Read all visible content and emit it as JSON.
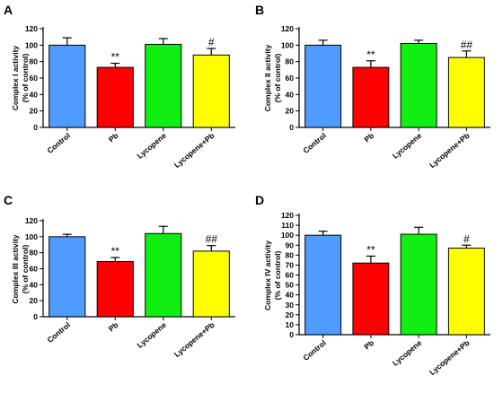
{
  "chart_data": [
    {
      "type": "bar",
      "panel": "A",
      "categories": [
        "Control",
        "Pb",
        "Lycopene",
        "Lycopene+Pb"
      ],
      "values": [
        100,
        73,
        101,
        88
      ],
      "errors": [
        9,
        5,
        7,
        8
      ],
      "annotations": [
        "",
        "**",
        "",
        "#"
      ],
      "ylabel": [
        "Complex I activity",
        "(% of control)"
      ],
      "ylim": [
        0,
        120
      ],
      "yticks": [
        0,
        20,
        40,
        60,
        80,
        100,
        120
      ]
    },
    {
      "type": "bar",
      "panel": "B",
      "categories": [
        "Control",
        "Pb",
        "Lycopene",
        "Lycopene+Pb"
      ],
      "values": [
        100,
        73,
        102,
        85
      ],
      "errors": [
        6,
        8,
        4,
        8
      ],
      "annotations": [
        "",
        "**",
        "",
        "##"
      ],
      "ylabel": [
        "Complex II activity",
        "(% of control)"
      ],
      "ylim": [
        0,
        120
      ],
      "yticks": [
        0,
        20,
        40,
        60,
        80,
        100,
        120
      ]
    },
    {
      "type": "bar",
      "panel": "C",
      "categories": [
        "Control",
        "Pb",
        "Lycopene",
        "Lycopene+Pb"
      ],
      "values": [
        100,
        69,
        104,
        82
      ],
      "errors": [
        3,
        5,
        9,
        7
      ],
      "annotations": [
        "",
        "**",
        "",
        "##"
      ],
      "ylabel": [
        "Complex III activity",
        "(% of control)"
      ],
      "ylim": [
        0,
        120
      ],
      "yticks": [
        0,
        20,
        40,
        60,
        80,
        100,
        120
      ]
    },
    {
      "type": "bar",
      "panel": "D",
      "categories": [
        "Control",
        "Pb",
        "Lycopene",
        "Lycopene+Pb"
      ],
      "values": [
        100,
        72,
        101,
        87
      ],
      "errors": [
        4,
        7,
        7,
        3
      ],
      "annotations": [
        "",
        "**",
        "",
        "#"
      ],
      "ylabel": [
        "Complex IV activity",
        "(% of control)"
      ],
      "ylim": [
        0,
        120
      ],
      "yticks": [
        0,
        10,
        20,
        30,
        40,
        50,
        60,
        70,
        80,
        90,
        100,
        110,
        120
      ]
    }
  ],
  "bar_colors": [
    "#4f9bff",
    "#ff0000",
    "#11ee11",
    "#ffff00"
  ]
}
